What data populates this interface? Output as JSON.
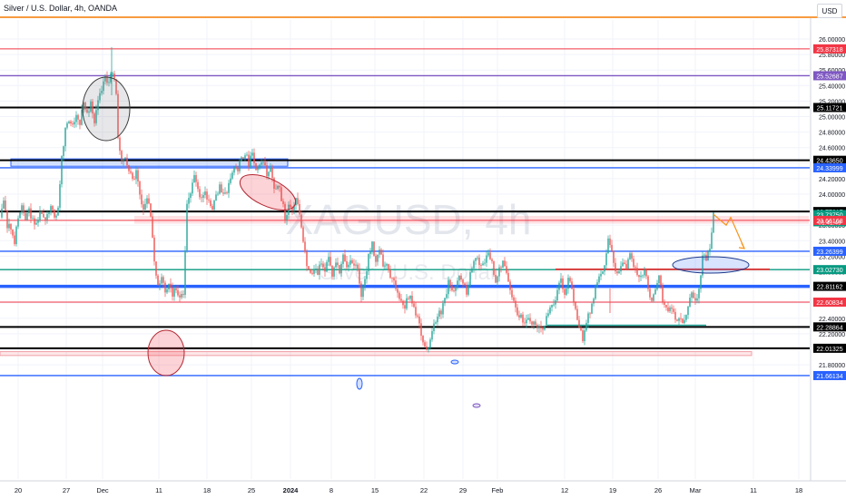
{
  "header": {
    "title": "Silver / U.S. Dollar, 4h, OANDA",
    "currency": "USD"
  },
  "watermark": {
    "symbol": "XAGUSD, 4h",
    "name": "Silver / U.S. Dollar"
  },
  "countdown": "01:41:49",
  "colors": {
    "up": "#26a69a",
    "down": "#ef5350",
    "orange_top": "#f57c00",
    "purple": "#7e57c2",
    "blue": "#2962ff",
    "black": "#000000",
    "red": "#f23645",
    "teal": "#089981",
    "forecast": "#f7931a"
  },
  "chart_data": {
    "type": "candlestick",
    "symbol": "XAGUSD",
    "timeframe": "4h",
    "ylim": [
      21.55,
      26.25
    ],
    "price_ticks": [
      "26.00000",
      "25.80000",
      "25.60000",
      "25.40000",
      "25.20000",
      "25.00000",
      "24.80000",
      "24.60000",
      "24.40000",
      "24.20000",
      "24.00000",
      "23.80000",
      "23.60000",
      "23.40000",
      "23.20000",
      "23.00000",
      "22.80000",
      "22.60000",
      "22.40000",
      "22.20000",
      "22.00000",
      "21.80000"
    ],
    "x_ticks": [
      "20",
      "27",
      "Dec",
      "11",
      "18",
      "25",
      "2024",
      "8",
      "15",
      "22",
      "29",
      "Feb",
      "12",
      "19",
      "26",
      "Mar",
      "11",
      "18"
    ],
    "price_labels": [
      "25.87318",
      "25.52687",
      "25.11721",
      "24.43650",
      "24.33999",
      "23.77617",
      "23.73750",
      "23.66168",
      "23.26399",
      "23.02730",
      "22.81162",
      "22.60834",
      "22.28864",
      "22.01325",
      "21.66134"
    ],
    "horizontal_levels": [
      {
        "price": 25.87318,
        "color": "red"
      },
      {
        "price": 25.52687,
        "color": "purple"
      },
      {
        "price": 25.11721,
        "color": "black"
      },
      {
        "price": 24.4365,
        "color": "black"
      },
      {
        "price": 24.33999,
        "color": "blue"
      },
      {
        "price": 23.77617,
        "color": "black"
      },
      {
        "price": 23.66168,
        "color": "red"
      },
      {
        "price": 23.26399,
        "color": "blue"
      },
      {
        "price": 23.0273,
        "color": "teal"
      },
      {
        "price": 22.81162,
        "color": "blue"
      },
      {
        "price": 22.60834,
        "color": "red"
      },
      {
        "price": 22.28864,
        "color": "black"
      },
      {
        "price": 22.01325,
        "color": "black"
      },
      {
        "price": 21.66134,
        "color": "blue"
      }
    ],
    "close_path": [
      [
        0,
        23.7
      ],
      [
        4,
        23.92
      ],
      [
        8,
        23.6
      ],
      [
        12,
        23.55
      ],
      [
        16,
        23.4
      ],
      [
        20,
        23.72
      ],
      [
        24,
        23.85
      ],
      [
        28,
        23.7
      ],
      [
        32,
        23.78
      ],
      [
        36,
        23.66
      ],
      [
        40,
        23.62
      ],
      [
        44,
        23.75
      ],
      [
        48,
        23.68
      ],
      [
        52,
        23.74
      ],
      [
        56,
        23.82
      ],
      [
        60,
        23.72
      ],
      [
        64,
        23.8
      ],
      [
        68,
        24.45
      ],
      [
        72,
        24.82
      ],
      [
        76,
        24.95
      ],
      [
        80,
        24.85
      ],
      [
        84,
        25.05
      ],
      [
        88,
        24.9
      ],
      [
        92,
        25.2
      ],
      [
        96,
        25.05
      ],
      [
        100,
        25.15
      ],
      [
        104,
        24.95
      ],
      [
        108,
        25.2
      ],
      [
        112,
        25.35
      ],
      [
        116,
        25.5
      ],
      [
        120,
        25.42
      ],
      [
        124,
        25.6
      ],
      [
        128,
        25.3
      ],
      [
        130,
        24.7
      ],
      [
        134,
        24.45
      ],
      [
        138,
        24.5
      ],
      [
        142,
        24.3
      ],
      [
        146,
        24.15
      ],
      [
        150,
        24.3
      ],
      [
        154,
        23.95
      ],
      [
        158,
        23.85
      ],
      [
        162,
        23.95
      ],
      [
        166,
        23.75
      ],
      [
        170,
        23.1
      ],
      [
        174,
        22.8
      ],
      [
        178,
        22.95
      ],
      [
        182,
        22.75
      ],
      [
        186,
        22.85
      ],
      [
        190,
        22.7
      ],
      [
        194,
        22.8
      ],
      [
        198,
        22.65
      ],
      [
        202,
        22.72
      ],
      [
        206,
        23.9
      ],
      [
        210,
        24.05
      ],
      [
        214,
        24.2
      ],
      [
        218,
        24.05
      ],
      [
        222,
        23.95
      ],
      [
        226,
        24.0
      ],
      [
        230,
        23.9
      ],
      [
        234,
        23.85
      ],
      [
        238,
        23.95
      ],
      [
        242,
        24.1
      ],
      [
        246,
        24.0
      ],
      [
        250,
        24.05
      ],
      [
        254,
        24.2
      ],
      [
        258,
        24.35
      ],
      [
        262,
        24.3
      ],
      [
        266,
        24.45
      ],
      [
        270,
        24.55
      ],
      [
        274,
        24.4
      ],
      [
        278,
        24.5
      ],
      [
        282,
        24.3
      ],
      [
        286,
        24.35
      ],
      [
        290,
        24.4
      ],
      [
        294,
        24.25
      ],
      [
        298,
        24.3
      ],
      [
        302,
        24.05
      ],
      [
        306,
        24.15
      ],
      [
        310,
        23.95
      ],
      [
        314,
        23.7
      ],
      [
        318,
        23.85
      ],
      [
        322,
        23.8
      ],
      [
        326,
        24.0
      ],
      [
        330,
        23.75
      ],
      [
        334,
        23.4
      ],
      [
        338,
        23.05
      ],
      [
        342,
        22.95
      ],
      [
        346,
        23.05
      ],
      [
        350,
        22.98
      ],
      [
        354,
        23.12
      ],
      [
        358,
        23.05
      ],
      [
        362,
        23.15
      ],
      [
        366,
        22.95
      ],
      [
        370,
        23.1
      ],
      [
        374,
        23.0
      ],
      [
        378,
        23.2
      ],
      [
        382,
        23.05
      ],
      [
        386,
        23.15
      ],
      [
        390,
        23.1
      ],
      [
        394,
        23.0
      ],
      [
        398,
        22.7
      ],
      [
        402,
        22.9
      ],
      [
        406,
        23.2
      ],
      [
        410,
        23.35
      ],
      [
        414,
        23.15
      ],
      [
        418,
        23.25
      ],
      [
        422,
        23.1
      ],
      [
        426,
        23.05
      ],
      [
        430,
        22.95
      ],
      [
        434,
        22.85
      ],
      [
        438,
        22.75
      ],
      [
        442,
        22.65
      ],
      [
        446,
        22.55
      ],
      [
        450,
        22.7
      ],
      [
        454,
        22.6
      ],
      [
        458,
        22.45
      ],
      [
        462,
        22.3
      ],
      [
        466,
        22.1
      ],
      [
        470,
        21.95
      ],
      [
        474,
        22.1
      ],
      [
        478,
        22.3
      ],
      [
        482,
        22.45
      ],
      [
        486,
        22.5
      ],
      [
        490,
        22.65
      ],
      [
        494,
        22.85
      ],
      [
        498,
        22.75
      ],
      [
        502,
        22.8
      ],
      [
        506,
        22.95
      ],
      [
        510,
        22.85
      ],
      [
        514,
        22.75
      ],
      [
        518,
        22.95
      ],
      [
        522,
        23.1
      ],
      [
        526,
        23.2
      ],
      [
        530,
        23.05
      ],
      [
        534,
        23.15
      ],
      [
        538,
        23.25
      ],
      [
        542,
        23.1
      ],
      [
        546,
        22.9
      ],
      [
        550,
        23.05
      ],
      [
        554,
        23.15
      ],
      [
        558,
        23.0
      ],
      [
        562,
        22.75
      ],
      [
        566,
        22.6
      ],
      [
        570,
        22.45
      ],
      [
        574,
        22.4
      ],
      [
        578,
        22.35
      ],
      [
        582,
        22.38
      ],
      [
        586,
        22.3
      ],
      [
        590,
        22.32
      ],
      [
        594,
        22.25
      ],
      [
        598,
        22.3
      ],
      [
        602,
        22.4
      ],
      [
        606,
        22.5
      ],
      [
        610,
        22.6
      ],
      [
        614,
        22.75
      ],
      [
        618,
        22.9
      ],
      [
        622,
        22.7
      ],
      [
        626,
        22.95
      ],
      [
        630,
        22.75
      ],
      [
        634,
        22.55
      ],
      [
        638,
        22.3
      ],
      [
        642,
        22.1
      ],
      [
        646,
        22.35
      ],
      [
        650,
        22.5
      ],
      [
        654,
        22.7
      ],
      [
        658,
        22.9
      ],
      [
        662,
        23.0
      ],
      [
        666,
        23.1
      ],
      [
        670,
        23.45
      ],
      [
        674,
        23.25
      ],
      [
        678,
        23.05
      ],
      [
        682,
        23.0
      ],
      [
        686,
        23.15
      ],
      [
        690,
        23.05
      ],
      [
        694,
        23.2
      ],
      [
        698,
        23.1
      ],
      [
        702,
        23.0
      ],
      [
        706,
        22.95
      ],
      [
        710,
        23.05
      ],
      [
        714,
        22.75
      ],
      [
        718,
        22.65
      ],
      [
        722,
        22.75
      ],
      [
        726,
        22.95
      ],
      [
        730,
        22.65
      ],
      [
        734,
        22.5
      ],
      [
        738,
        22.55
      ],
      [
        742,
        22.45
      ],
      [
        746,
        22.4
      ],
      [
        750,
        22.35
      ],
      [
        754,
        22.4
      ],
      [
        758,
        22.55
      ],
      [
        762,
        22.7
      ],
      [
        766,
        22.65
      ],
      [
        770,
        22.75
      ],
      [
        774,
        23.2
      ],
      [
        778,
        23.15
      ],
      [
        782,
        23.3
      ],
      [
        786,
        23.74
      ]
    ],
    "forecast_path": [
      [
        786,
        23.74
      ],
      [
        800,
        23.6
      ],
      [
        805,
        23.7
      ],
      [
        820,
        23.3
      ]
    ],
    "ellipses": [
      {
        "cx": 117,
        "cy": 120,
        "rx": 26,
        "ry": 35,
        "style": "gray"
      },
      {
        "cx": 295,
        "cy": 212,
        "rx": 33,
        "ry": 15,
        "style": "red",
        "rotate": 25
      },
      {
        "cx": 183,
        "cy": 389,
        "rx": 20,
        "ry": 25,
        "style": "red"
      },
      {
        "cx": 783,
        "cy": 292,
        "rx": 42,
        "ry": 9,
        "style": "blue"
      },
      {
        "cx": 396,
        "cy": 423,
        "rx": 3,
        "ry": 6,
        "style": "small-blue"
      },
      {
        "cx": 501,
        "cy": 399,
        "rx": 4,
        "ry": 2,
        "style": "small-blue"
      },
      {
        "cx": 525,
        "cy": 447,
        "rx": 4,
        "ry": 2,
        "style": "small-purple"
      }
    ]
  }
}
